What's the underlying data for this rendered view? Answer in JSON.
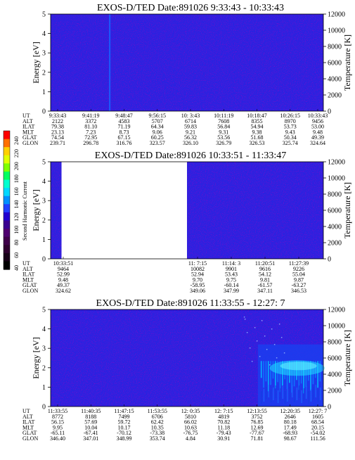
{
  "colorbar": {
    "label": "Second Harmonic Current",
    "ticks": [
      "240",
      "220",
      "200",
      "180",
      "160",
      "140",
      "120",
      "100",
      "80",
      "60",
      "40"
    ],
    "colors": [
      "#ff0000",
      "#ff7000",
      "#ffd000",
      "#e0ff00",
      "#80ff00",
      "#00ff60",
      "#00ffd0",
      "#00d8ff",
      "#0090ff",
      "#2040ff",
      "#2000d0",
      "#3a0090",
      "#500070",
      "#40004a",
      "#300030",
      "#180018",
      "#000000"
    ]
  },
  "chart_data": [
    {
      "type": "heatmap",
      "title": "EXOS-D/TED   Date:891026  9:33:43 - 10:33:43",
      "ylabel": "Energy [eV]",
      "y2label": "Temperature [K]",
      "ylim": [
        0,
        5
      ],
      "y2lim": [
        0,
        12000
      ],
      "yticks": [
        "0",
        "1",
        "2",
        "3",
        "4",
        "5"
      ],
      "y2ticks": [
        "0",
        "2000",
        "4000",
        "6000",
        "8000",
        "10000",
        "12000"
      ],
      "data_gap": null,
      "background_color": "#2a22e0",
      "table": {
        "labels": [
          "UT",
          "ALT",
          "ILAT",
          "MLT",
          "GLAT",
          "GLON"
        ],
        "columns": [
          [
            "9:33:43",
            "2122",
            "79.38",
            "23.13",
            "74.54",
            "239.71"
          ],
          [
            "9:41:19",
            "3372",
            "81.10",
            "7.23",
            "72.95",
            "296.78"
          ],
          [
            "9:48:47",
            "4583",
            "71.19",
            "8.73",
            "67.15",
            "316.76"
          ],
          [
            "9:56:15",
            "5707",
            "64.34",
            "9.06",
            "60.25",
            "323.57"
          ],
          [
            "10: 3:43",
            "6714",
            "59.83",
            "9.21",
            "56.32",
            "326.10"
          ],
          [
            "10:11:19",
            "7608",
            "56.84",
            "9.31",
            "53.56",
            "326.79"
          ],
          [
            "10:18:47",
            "8355",
            "54.94",
            "9.38",
            "51.68",
            "326.53"
          ],
          [
            "10:26:15",
            "8970",
            "53.73",
            "9.43",
            "50.34",
            "325.74"
          ],
          [
            "10:33:43",
            "9456",
            "53.00",
            "9.48",
            "49.39",
            "324.64"
          ]
        ]
      }
    },
    {
      "type": "heatmap",
      "title": "EXOS-D/TED   Date:891026  10:33:51 - 11:33:47",
      "ylabel": "Energy [eV]",
      "y2label": "Temperature [K]",
      "ylim": [
        0,
        5
      ],
      "y2lim": [
        0,
        12000
      ],
      "yticks": [
        "0",
        "1",
        "2",
        "3",
        "4",
        "5"
      ],
      "y2ticks": [
        "0",
        "2000",
        "4000",
        "6000",
        "8000",
        "10000",
        "12000"
      ],
      "data_gap": {
        "from_fraction": 0.04,
        "to_fraction": 0.5
      },
      "background_color": "#2a22e0",
      "table": {
        "labels": [
          "UT",
          "ALT",
          "ILAT",
          "MLT",
          "GLAT",
          "GLON"
        ],
        "columns": [
          [
            "10:33:51",
            "9464",
            "52.99",
            "9.48",
            "49.37",
            "324.62"
          ],
          [
            "11: 7:15",
            "10082",
            "52.94",
            "9.70",
            "-58.95",
            "349.06"
          ],
          [
            "11:14: 3",
            "9901",
            "53.43",
            "9.75",
            "-60.14",
            "347.99"
          ],
          [
            "11:20:51",
            "9616",
            "54.12",
            "9.81",
            "-61.57",
            "347.11"
          ],
          [
            "11:27:39",
            "9226",
            "55.04",
            "9.87",
            "-63.27",
            "346.53"
          ]
        ]
      }
    },
    {
      "type": "heatmap",
      "title": "EXOS-D/TED   Date:891026  11:33:55 - 12:27: 7",
      "ylabel": "Energy [eV]",
      "y2label": "Temperature [K]",
      "ylim": [
        0,
        5
      ],
      "y2lim": [
        0,
        12000
      ],
      "yticks": [
        "0",
        "1",
        "2",
        "3",
        "4",
        "5"
      ],
      "y2ticks": [
        "0",
        "2000",
        "4000",
        "6000",
        "8000",
        "10000",
        "12000"
      ],
      "data_gap": null,
      "background_color": "#2a22e0",
      "enhancement": {
        "start_fraction": 0.76,
        "energy_range_eV": [
          0,
          3.2
        ],
        "peak_energy_eV": 2.2
      },
      "table": {
        "labels": [
          "UT",
          "ALT",
          "ILAT",
          "MLT",
          "GLAT",
          "GLON"
        ],
        "columns": [
          [
            "11:33:55",
            "8772",
            "56.15",
            "9.95",
            "-65.11",
            "346.40"
          ],
          [
            "11:40:35",
            "8188",
            "57.69",
            "10.04",
            "-67.41",
            "347.01"
          ],
          [
            "11:47:15",
            "7499",
            "59.72",
            "10.17",
            "-70.12",
            "348.99"
          ],
          [
            "11:53:55",
            "6706",
            "62.42",
            "10.35",
            "-73.38",
            "353.74"
          ],
          [
            "12: 0:35",
            "5810",
            "66.02",
            "10.63",
            "-76.75",
            "4.84"
          ],
          [
            "12: 7:15",
            "4819",
            "70.82",
            "11.18",
            "-79.43",
            "30.91"
          ],
          [
            "12:13:55",
            "3752",
            "76.85",
            "12.69",
            "-77.67",
            "71.81"
          ],
          [
            "12:20:35",
            "2646",
            "80.18",
            "17.49",
            "-68.93",
            "98.67"
          ],
          [
            "12:27: 7",
            "1605",
            "68.54",
            "20.15",
            "-54.02",
            "111.56"
          ]
        ]
      }
    }
  ]
}
